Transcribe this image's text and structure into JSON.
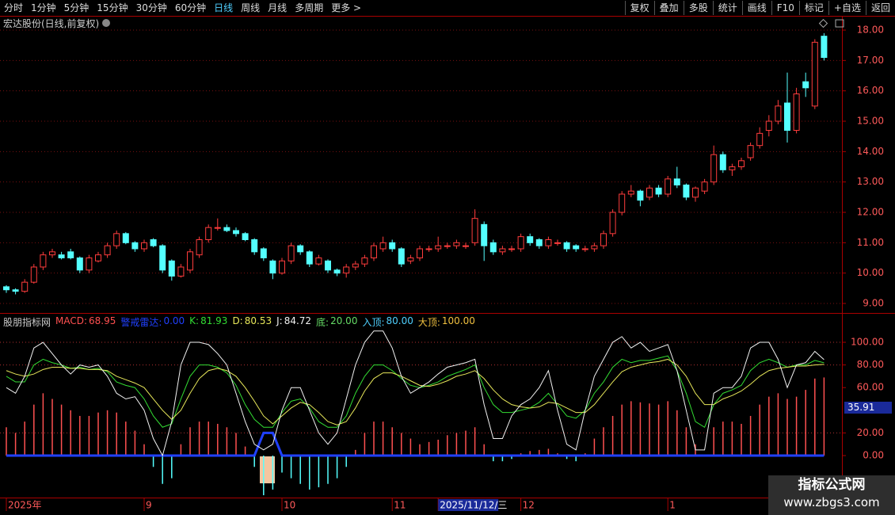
{
  "toolbar": {
    "periods": [
      "分时",
      "1分钟",
      "5分钟",
      "15分钟",
      "30分钟",
      "60分钟",
      "日线",
      "周线",
      "月线",
      "多周期",
      "更多 >"
    ],
    "active_period": "日线",
    "tools": [
      "复权",
      "叠加",
      "多股",
      "统计",
      "画线",
      "F10",
      "标记",
      "+自选",
      "返回"
    ]
  },
  "chart_data": [
    {
      "type": "candlestick",
      "title": "宏达股份(日线,前复权)",
      "categories": [
        "2025年",
        null,
        null,
        null,
        null,
        null,
        null,
        null,
        null,
        null,
        null,
        null,
        null,
        null,
        null,
        "9",
        null,
        null,
        null,
        null,
        null,
        null,
        null,
        null,
        null,
        null,
        null,
        null,
        null,
        null,
        "10",
        null,
        null,
        null,
        null,
        null,
        null,
        null,
        null,
        null,
        null,
        null,
        "11",
        null,
        null,
        null,
        null,
        "2025/11/12/三",
        null,
        null,
        null,
        null,
        null,
        null,
        null,
        null,
        "12",
        null,
        null,
        null,
        null,
        null,
        null,
        null,
        null,
        null,
        null,
        null,
        null,
        null,
        null,
        null,
        "1",
        null,
        null,
        null,
        null,
        null,
        null,
        null,
        null,
        null,
        null,
        null,
        null,
        null,
        null,
        null,
        null,
        null
      ],
      "selected_category": 47,
      "open": [
        9.55,
        9.45,
        9.4,
        9.7,
        10.2,
        10.6,
        10.6,
        10.7,
        10.5,
        10.1,
        10.4,
        10.6,
        10.9,
        11.3,
        11.0,
        10.8,
        11.1,
        10.9,
        10.4,
        9.9,
        10.1,
        10.6,
        11.1,
        11.5,
        11.5,
        11.4,
        11.3,
        11.1,
        10.8,
        10.4,
        10.0,
        10.4,
        10.9,
        10.7,
        10.3,
        10.4,
        10.1,
        10.0,
        10.2,
        10.3,
        10.5,
        10.8,
        11.0,
        10.8,
        10.4,
        10.5,
        10.8,
        10.8,
        10.9,
        10.9,
        10.9,
        11.0,
        11.6,
        11.0,
        10.7,
        10.8,
        10.8,
        11.2,
        11.1,
        10.9,
        11.0,
        11.0,
        10.9,
        10.8,
        10.8,
        10.9,
        11.3,
        12.0,
        12.6,
        12.7,
        12.5,
        12.8,
        12.6,
        13.1,
        12.9,
        12.5,
        12.7,
        13.0,
        13.9,
        13.4,
        13.5,
        13.8,
        14.2,
        14.7,
        15.0,
        15.6,
        14.7,
        16.3,
        15.5,
        17.8
      ],
      "high": [
        9.6,
        9.5,
        9.8,
        10.3,
        10.7,
        10.8,
        10.7,
        10.8,
        10.55,
        10.6,
        10.7,
        11.0,
        11.4,
        11.35,
        11.05,
        11.1,
        11.15,
        10.95,
        10.45,
        10.3,
        10.8,
        11.2,
        11.6,
        11.8,
        11.6,
        11.5,
        11.35,
        11.15,
        10.85,
        10.45,
        10.5,
        11.0,
        10.95,
        10.75,
        10.6,
        10.45,
        10.15,
        10.3,
        10.4,
        10.6,
        11.0,
        11.2,
        11.1,
        10.85,
        10.6,
        10.9,
        10.9,
        11.2,
        11.0,
        11.1,
        11.0,
        12.1,
        11.7,
        11.1,
        10.9,
        10.9,
        11.3,
        11.3,
        11.15,
        11.2,
        11.1,
        11.05,
        10.95,
        10.9,
        11.0,
        11.4,
        12.1,
        12.7,
        12.9,
        12.75,
        12.9,
        12.9,
        13.2,
        13.5,
        12.95,
        12.85,
        13.1,
        14.2,
        14.0,
        13.6,
        13.8,
        14.3,
        14.8,
        15.2,
        15.7,
        16.6,
        16.1,
        16.6,
        17.7,
        17.9
      ],
      "low": [
        9.35,
        9.3,
        9.35,
        9.65,
        10.1,
        10.5,
        10.45,
        10.45,
        10.0,
        10.0,
        10.35,
        10.5,
        10.8,
        10.95,
        10.7,
        10.7,
        10.85,
        10.0,
        9.75,
        9.85,
        10.0,
        10.5,
        11.0,
        11.4,
        11.35,
        11.2,
        11.05,
        10.6,
        10.4,
        9.8,
        9.95,
        10.3,
        10.6,
        10.2,
        10.25,
        10.0,
        9.9,
        9.85,
        10.1,
        10.2,
        10.4,
        10.7,
        10.7,
        10.2,
        10.3,
        10.4,
        10.7,
        10.7,
        10.8,
        10.8,
        10.8,
        10.9,
        10.4,
        10.6,
        10.6,
        10.7,
        10.7,
        10.9,
        10.8,
        10.8,
        10.9,
        10.7,
        10.7,
        10.7,
        10.7,
        10.8,
        11.2,
        11.9,
        12.5,
        12.2,
        12.4,
        12.5,
        12.5,
        12.8,
        12.4,
        12.35,
        12.6,
        12.9,
        13.3,
        13.2,
        13.4,
        13.7,
        14.1,
        14.5,
        14.9,
        14.3,
        14.6,
        15.8,
        15.4,
        17.0
      ],
      "close": [
        9.45,
        9.4,
        9.7,
        10.2,
        10.6,
        10.7,
        10.5,
        10.5,
        10.1,
        10.5,
        10.6,
        10.9,
        11.3,
        11.0,
        10.8,
        11.0,
        10.9,
        10.1,
        9.9,
        10.2,
        10.7,
        11.1,
        11.5,
        11.5,
        11.4,
        11.3,
        11.1,
        10.7,
        10.5,
        10.0,
        10.4,
        10.9,
        10.7,
        10.3,
        10.5,
        10.1,
        10.0,
        10.2,
        10.3,
        10.5,
        10.9,
        11.0,
        10.8,
        10.3,
        10.5,
        10.8,
        10.8,
        10.9,
        10.9,
        11.0,
        10.9,
        11.8,
        10.9,
        10.7,
        10.8,
        10.8,
        11.2,
        11.0,
        10.9,
        11.1,
        11.0,
        10.8,
        10.8,
        10.8,
        10.9,
        11.3,
        12.0,
        12.6,
        12.7,
        12.4,
        12.8,
        12.6,
        13.1,
        12.9,
        12.5,
        12.8,
        13.0,
        13.9,
        13.4,
        13.5,
        13.7,
        14.2,
        14.6,
        15.0,
        15.5,
        14.7,
        15.9,
        16.1,
        17.6,
        17.1
      ],
      "up_color": "#ff3c3c",
      "down_color": "#54ffff",
      "ylim": [
        8.7,
        18.4
      ],
      "yticks": [
        {
          "value": 9,
          "label": "9.00"
        },
        {
          "value": 10,
          "label": "10.00"
        },
        {
          "value": 11,
          "label": "11.00"
        },
        {
          "value": 12,
          "label": "12.00"
        },
        {
          "value": 13,
          "label": "13.00"
        },
        {
          "value": 14,
          "label": "14.00"
        },
        {
          "value": 15,
          "label": "15.00"
        },
        {
          "value": 16,
          "label": "16.00"
        },
        {
          "value": 17,
          "label": "17.00"
        },
        {
          "value": 18,
          "label": "18.00"
        }
      ],
      "grid": true
    },
    {
      "type": "line",
      "title": "股朋指标网",
      "series": [
        {
          "name": "MACD:",
          "legend_value": "68.95",
          "style": "bar",
          "color": "#ff5050",
          "negative_color": "#54ffff",
          "values": [
            25,
            20,
            30,
            45,
            55,
            50,
            45,
            40,
            35,
            35,
            38,
            40,
            38,
            30,
            22,
            10,
            -10,
            -25,
            -20,
            10,
            25,
            30,
            30,
            28,
            25,
            20,
            8,
            -10,
            -35,
            -30,
            -15,
            -20,
            -25,
            -30,
            -28,
            -25,
            -20,
            -10,
            5,
            20,
            30,
            30,
            25,
            20,
            15,
            10,
            12,
            14,
            18,
            20,
            22,
            25,
            10,
            -5,
            -5,
            -3,
            2,
            4,
            5,
            6,
            2,
            -3,
            -5,
            2,
            15,
            25,
            35,
            45,
            48,
            47,
            46,
            45,
            48,
            40,
            25,
            10,
            0,
            25,
            30,
            30,
            28,
            35,
            45,
            52,
            55,
            50,
            52,
            58,
            68,
            68.95
          ]
        },
        {
          "name": "警戒雷达:",
          "legend_value": "0.00",
          "style": "line",
          "color": "#2040ff",
          "width": 3,
          "values": [
            0,
            0,
            0,
            0,
            0,
            0,
            0,
            0,
            0,
            0,
            0,
            0,
            0,
            0,
            0,
            0,
            0,
            0,
            0,
            0,
            0,
            0,
            0,
            0,
            0,
            0,
            0,
            0,
            20,
            20,
            0,
            0,
            0,
            0,
            0,
            0,
            0,
            0,
            0,
            0,
            0,
            0,
            0,
            0,
            0,
            0,
            0,
            0,
            0,
            0,
            0,
            0,
            0,
            0,
            0,
            0,
            0,
            0,
            0,
            0,
            0,
            0,
            0,
            0,
            0,
            0,
            0,
            0,
            0,
            0,
            0,
            0,
            0,
            0,
            0,
            0,
            0,
            0,
            0,
            0,
            0,
            0,
            0,
            0,
            0,
            0,
            0,
            0,
            0,
            0
          ]
        },
        {
          "name": "K:",
          "legend_value": "81.93",
          "style": "line",
          "color": "#33dd33",
          "width": 1,
          "values": [
            70,
            65,
            65,
            80,
            85,
            82,
            80,
            77,
            78,
            76,
            77,
            74,
            65,
            62,
            60,
            50,
            35,
            25,
            28,
            50,
            70,
            80,
            80,
            78,
            73,
            62,
            45,
            32,
            25,
            25,
            38,
            48,
            50,
            42,
            30,
            25,
            25,
            35,
            55,
            70,
            80,
            80,
            75,
            68,
            62,
            60,
            62,
            65,
            70,
            73,
            76,
            80,
            60,
            45,
            38,
            38,
            40,
            42,
            47,
            55,
            45,
            35,
            33,
            40,
            55,
            65,
            78,
            85,
            82,
            84,
            84,
            86,
            88,
            75,
            55,
            30,
            25,
            45,
            55,
            58,
            62,
            75,
            82,
            85,
            82,
            78,
            80,
            80,
            84,
            81.93
          ]
        },
        {
          "name": "D:",
          "legend_value": "80.53",
          "style": "line",
          "color": "#e8e85a",
          "width": 1,
          "values": [
            75,
            72,
            70,
            72,
            76,
            78,
            78,
            77,
            77,
            76,
            76,
            75,
            70,
            67,
            64,
            60,
            50,
            40,
            32,
            40,
            55,
            68,
            75,
            77,
            75,
            70,
            60,
            48,
            35,
            28,
            35,
            42,
            47,
            45,
            38,
            30,
            27,
            30,
            42,
            57,
            68,
            73,
            73,
            70,
            66,
            62,
            61,
            63,
            66,
            70,
            72,
            75,
            68,
            58,
            50,
            45,
            43,
            42,
            43,
            47,
            46,
            42,
            38,
            38,
            45,
            55,
            65,
            74,
            78,
            80,
            82,
            83,
            85,
            80,
            70,
            55,
            45,
            45,
            50,
            53,
            57,
            63,
            70,
            75,
            77,
            78,
            79,
            79,
            80,
            80.53
          ]
        },
        {
          "name": "J:",
          "legend_value": "84.72",
          "style": "line",
          "color": "#f2f2f2",
          "width": 1,
          "values": [
            60,
            55,
            70,
            95,
            100,
            90,
            80,
            72,
            80,
            78,
            80,
            70,
            55,
            50,
            52,
            40,
            15,
            0,
            30,
            80,
            100,
            100,
            98,
            90,
            80,
            55,
            30,
            10,
            5,
            10,
            40,
            60,
            60,
            40,
            20,
            10,
            20,
            50,
            80,
            100,
            110,
            110,
            95,
            70,
            55,
            60,
            65,
            72,
            78,
            80,
            82,
            85,
            45,
            15,
            15,
            35,
            45,
            50,
            60,
            75,
            40,
            10,
            5,
            40,
            70,
            85,
            100,
            105,
            95,
            100,
            92,
            95,
            98,
            75,
            40,
            5,
            5,
            55,
            60,
            60,
            70,
            95,
            100,
            100,
            85,
            60,
            80,
            82,
            92,
            84.72
          ]
        }
      ],
      "levels": [
        {
          "name": "底:",
          "value": 20,
          "label": "20.00",
          "color": "#66dd66"
        },
        {
          "name": "入顶:",
          "value": 80,
          "label": "80.00",
          "color": "#4fd0ff"
        },
        {
          "name": "大顶:",
          "value": 100,
          "label": "100.00",
          "color": "#f0c040"
        }
      ],
      "cursor_label": "35.91",
      "ylim": [
        -37,
        124
      ],
      "yticks": [
        {
          "value": 0,
          "label": "0.00"
        },
        {
          "value": 20,
          "label": "20.00"
        },
        {
          "value": 60,
          "label": "60.00"
        },
        {
          "value": 80,
          "label": "80.00"
        },
        {
          "value": 100,
          "label": "100.00"
        }
      ]
    }
  ],
  "watermark": {
    "title": "指标公式网",
    "url": "www.zbgs3.com"
  }
}
